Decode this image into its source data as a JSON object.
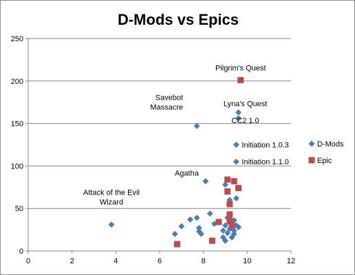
{
  "chart_data": {
    "type": "scatter",
    "title": "D-Mods vs Epics",
    "xlabel": "",
    "ylabel": "",
    "xlim": [
      0,
      12
    ],
    "ylim": [
      0,
      250
    ],
    "xticks": [
      0,
      2,
      4,
      6,
      8,
      10,
      12
    ],
    "yticks": [
      0,
      50,
      100,
      150,
      200,
      250
    ],
    "grid": "horizontal major gridlines",
    "legend_position": "right",
    "series": [
      {
        "name": "D-Mods",
        "marker": "diamond",
        "color": "#4a7ebb",
        "points": [
          {
            "x": 3.8,
            "y": 31
          },
          {
            "x": 6.7,
            "y": 20
          },
          {
            "x": 7.0,
            "y": 29
          },
          {
            "x": 7.4,
            "y": 37
          },
          {
            "x": 7.7,
            "y": 39
          },
          {
            "x": 7.7,
            "y": 147
          },
          {
            "x": 7.8,
            "y": 27
          },
          {
            "x": 7.8,
            "y": 23
          },
          {
            "x": 7.9,
            "y": 20
          },
          {
            "x": 8.1,
            "y": 82
          },
          {
            "x": 8.3,
            "y": 44
          },
          {
            "x": 8.5,
            "y": 32
          },
          {
            "x": 8.7,
            "y": 34
          },
          {
            "x": 8.9,
            "y": 24
          },
          {
            "x": 8.9,
            "y": 16
          },
          {
            "x": 9.0,
            "y": 78
          },
          {
            "x": 9.0,
            "y": 12
          },
          {
            "x": 9.0,
            "y": 30
          },
          {
            "x": 9.1,
            "y": 21
          },
          {
            "x": 9.1,
            "y": 39
          },
          {
            "x": 9.2,
            "y": 60
          },
          {
            "x": 9.2,
            "y": 38
          },
          {
            "x": 9.2,
            "y": 26
          },
          {
            "x": 9.3,
            "y": 16
          },
          {
            "x": 9.3,
            "y": 34
          },
          {
            "x": 9.4,
            "y": 24
          },
          {
            "x": 9.4,
            "y": 20
          },
          {
            "x": 9.4,
            "y": 36
          },
          {
            "x": 9.5,
            "y": 30
          },
          {
            "x": 9.5,
            "y": 62
          },
          {
            "x": 9.5,
            "y": 125
          },
          {
            "x": 9.5,
            "y": 105
          },
          {
            "x": 9.6,
            "y": 163
          },
          {
            "x": 9.6,
            "y": 156
          },
          {
            "x": 9.6,
            "y": 28
          }
        ]
      },
      {
        "name": "Epic",
        "marker": "square",
        "color": "#be4b48",
        "points": [
          {
            "x": 6.8,
            "y": 8
          },
          {
            "x": 8.4,
            "y": 12
          },
          {
            "x": 8.7,
            "y": 34
          },
          {
            "x": 9.1,
            "y": 84
          },
          {
            "x": 9.1,
            "y": 70
          },
          {
            "x": 9.2,
            "y": 55
          },
          {
            "x": 9.2,
            "y": 43
          },
          {
            "x": 9.2,
            "y": 35
          },
          {
            "x": 9.3,
            "y": 30
          },
          {
            "x": 9.4,
            "y": 82
          },
          {
            "x": 9.6,
            "y": 74
          },
          {
            "x": 9.7,
            "y": 201
          }
        ]
      }
    ],
    "annotations": [
      {
        "lines": [
          "Pilgrim's Quest"
        ],
        "x": 9.7,
        "y": 201,
        "anchor": "middle",
        "dx": 0,
        "dy": -14
      },
      {
        "lines": [
          "Savebot",
          "Massacre"
        ],
        "x": 7.7,
        "y": 147,
        "anchor": "end",
        "dx": -20,
        "dy": -24
      },
      {
        "lines": [
          "Lyna's Quest"
        ],
        "x": 9.6,
        "y": 163,
        "anchor": "middle",
        "dx": 10,
        "dy": -9
      },
      {
        "lines": [
          "CC2 1.0"
        ],
        "x": 9.6,
        "y": 156,
        "anchor": "middle",
        "dx": 10,
        "dy": 7
      },
      {
        "lines": [
          "Initiation 1.0.3"
        ],
        "x": 9.5,
        "y": 125,
        "anchor": "start",
        "dx": 8,
        "dy": 4
      },
      {
        "lines": [
          "Initiation 1.1.0"
        ],
        "x": 9.5,
        "y": 105,
        "anchor": "start",
        "dx": 8,
        "dy": 4
      },
      {
        "lines": [
          "Agatha"
        ],
        "x": 8.1,
        "y": 82,
        "anchor": "end",
        "dx": -10,
        "dy": -8
      },
      {
        "lines": [
          "Attack of the Evil",
          "Wizard"
        ],
        "x": 3.8,
        "y": 31,
        "anchor": "middle",
        "dx": 0,
        "dy": -29
      }
    ]
  }
}
